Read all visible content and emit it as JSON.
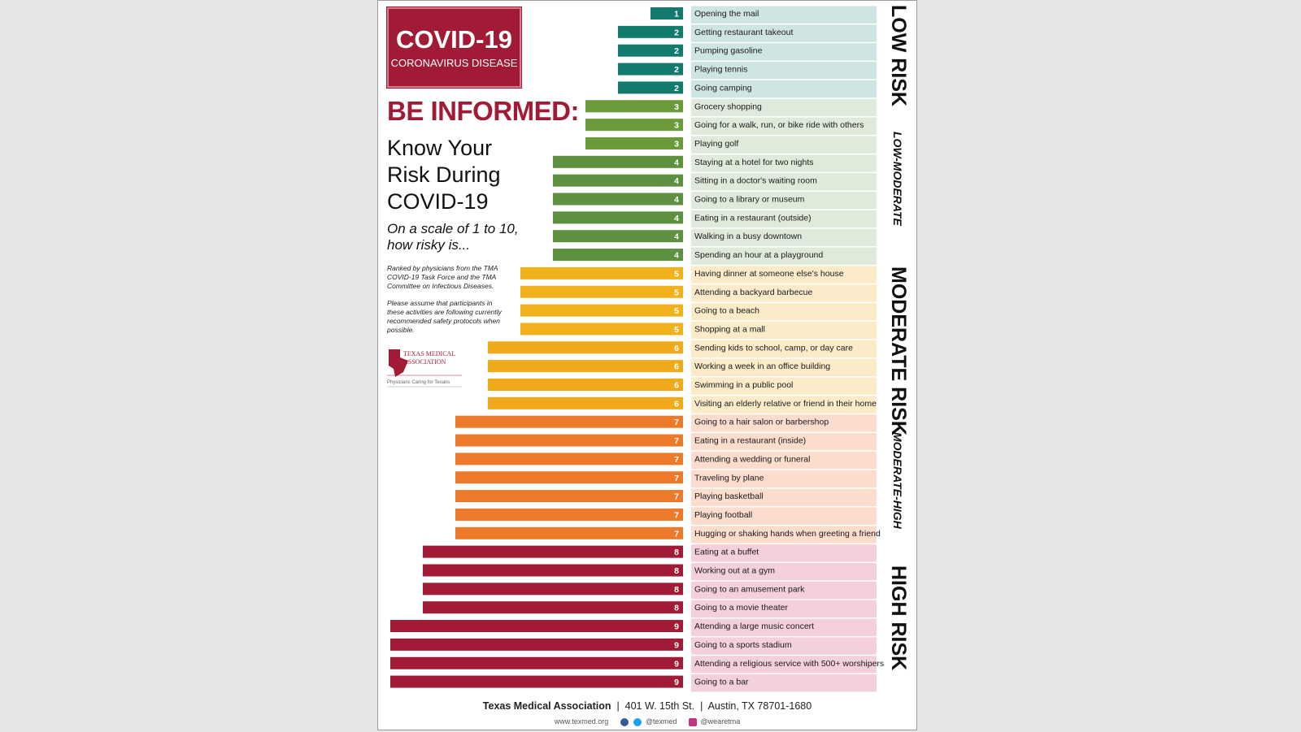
{
  "badge": {
    "title": "COVID-19",
    "subtitle": "CORONAVIRUS DISEASE"
  },
  "headline": "BE INFORMED:",
  "subhead": "Know Your Risk During COVID-19",
  "scale_question": "On a scale of 1 to 10, how risky is...",
  "note1": "Ranked by physicians from the TMA COVID-19 Task Force and the TMA Committee on Infectious Diseases.",
  "note2": "Please assume that participants in these activities are following currently recommended safety protocols when possible.",
  "logo": {
    "name": "TEXAS MEDICAL ASSOCIATION",
    "line1": "TEXAS MEDICAL",
    "line2": "ASSOCIATION",
    "tagline": "Physicians Caring for Texans",
    "color": "#a11b36"
  },
  "side_labels": {
    "low": "LOW RISK",
    "low_moderate": "LOW-MODERATE",
    "moderate": "MODERATE RISK",
    "moderate_high": "MODERATE-HIGH",
    "high": "HIGH RISK"
  },
  "footer": {
    "org": "Texas Medical Association",
    "address": "401 W. 15th St.",
    "city": "Austin, TX 78701-1680",
    "website": "www.texmed.org",
    "handle1": "@texmed",
    "handle2": "@wearetma"
  },
  "colors": {
    "1": "#137a6e",
    "2": "#137a6e",
    "3": "#6a9a3a",
    "4": "#5d9140",
    "5": "#f0b11d",
    "6": "#f0a91a",
    "7": "#ec7a2a",
    "8": "#a11b36",
    "9": "#a11b36",
    "bg_low": "#cfe5e3",
    "bg_lowmod": "#dfeadb",
    "bg_mod": "#fbebc9",
    "bg_modhigh": "#fbdccd",
    "bg_high": "#f4d0db",
    "brand": "#a11b36"
  },
  "chart_data": {
    "type": "bar",
    "orientation": "horizontal",
    "title": "",
    "xlabel": "",
    "ylabel": "",
    "xlim": [
      0,
      9
    ],
    "categories": [
      "Opening the mail",
      "Getting restaurant takeout",
      "Pumping gasoline",
      "Playing tennis",
      "Going camping",
      "Grocery shopping",
      "Going for a walk, run, or bike ride with others",
      "Playing golf",
      "Staying at a hotel for two nights",
      "Sitting in a doctor's waiting room",
      "Going to a library or museum",
      "Eating in a restaurant (outside)",
      "Walking in a busy downtown",
      "Spending an hour at a playground",
      "Having dinner at someone else's house",
      "Attending a backyard barbecue",
      "Going to a beach",
      "Shopping at a mall",
      "Sending kids to school, camp, or day care",
      "Working a week in an office building",
      "Swimming in a public pool",
      "Visiting an elderly relative or friend in their home",
      "Going to a hair salon or barbershop",
      "Eating in a restaurant (inside)",
      "Attending a wedding or funeral",
      "Traveling by plane",
      "Playing basketball",
      "Playing football",
      "Hugging or shaking hands when greeting a friend",
      "Eating at a buffet",
      "Working out at a gym",
      "Going to an amusement park",
      "Going to a movie theater",
      "Attending a large music concert",
      "Going to a sports stadium",
      "Attending a religious service with 500+ worshipers",
      "Going to a bar"
    ],
    "values": [
      1,
      2,
      2,
      2,
      2,
      3,
      3,
      3,
      4,
      4,
      4,
      4,
      4,
      4,
      5,
      5,
      5,
      5,
      6,
      6,
      6,
      6,
      7,
      7,
      7,
      7,
      7,
      7,
      7,
      8,
      8,
      8,
      8,
      9,
      9,
      9,
      9
    ]
  }
}
